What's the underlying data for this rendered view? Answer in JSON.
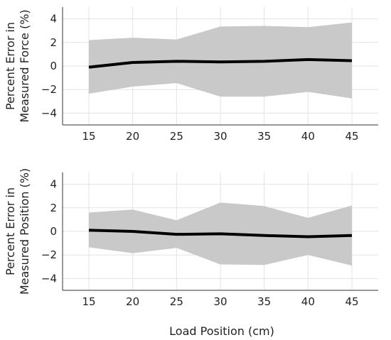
{
  "chart_data": [
    {
      "type": "line",
      "panel": "top",
      "ylabel_lines": [
        "Percent Error in",
        "Measured Force (%)"
      ],
      "xlabel": "",
      "x": [
        15,
        20,
        25,
        30,
        35,
        40,
        45
      ],
      "series": [
        {
          "values": [
            -0.1,
            0.3,
            0.4,
            0.35,
            0.4,
            0.55,
            0.45
          ]
        }
      ],
      "band_upper": [
        2.2,
        2.4,
        2.25,
        3.35,
        3.4,
        3.3,
        3.7
      ],
      "band_lower": [
        -2.35,
        -1.75,
        -1.45,
        -2.6,
        -2.6,
        -2.2,
        -2.75
      ],
      "xlim": [
        12,
        48
      ],
      "ylim": [
        -5,
        5
      ],
      "xticks": [
        "15",
        "20",
        "25",
        "30",
        "35",
        "40",
        "45"
      ],
      "yticks": [
        "4",
        "2",
        "0",
        "−2",
        "−4"
      ],
      "ytick_values": [
        4,
        2,
        0,
        -2,
        -4
      ],
      "grid": true
    },
    {
      "type": "line",
      "panel": "bottom",
      "ylabel_lines": [
        "Percent Error in",
        "Measured Position (%)"
      ],
      "xlabel": "Load Position (cm)",
      "x": [
        15,
        20,
        25,
        30,
        35,
        40,
        45
      ],
      "series": [
        {
          "values": [
            0.1,
            0.0,
            -0.25,
            -0.2,
            -0.35,
            -0.45,
            -0.35
          ]
        }
      ],
      "band_upper": [
        1.6,
        1.85,
        0.95,
        2.45,
        2.15,
        1.15,
        2.2
      ],
      "band_lower": [
        -1.35,
        -1.85,
        -1.4,
        -2.8,
        -2.85,
        -2.0,
        -2.9
      ],
      "xlim": [
        12,
        48
      ],
      "ylim": [
        -5,
        5
      ],
      "xticks": [
        "15",
        "20",
        "25",
        "30",
        "35",
        "40",
        "45"
      ],
      "yticks": [
        "4",
        "2",
        "0",
        "−2",
        "−4"
      ],
      "ytick_values": [
        4,
        2,
        0,
        -2,
        -4
      ],
      "grid": true
    }
  ]
}
